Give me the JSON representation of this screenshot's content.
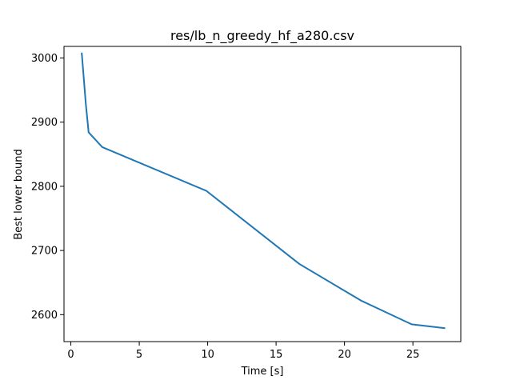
{
  "chart_data": {
    "type": "line",
    "title": "res/lb_n_greedy_hf_a280.csv",
    "xlabel": "Time [s]",
    "ylabel": "Best lower bound",
    "xlim": [
      -0.5,
      28.5
    ],
    "ylim": [
      2558,
      3018
    ],
    "xticks": [
      0,
      5,
      10,
      15,
      20,
      25
    ],
    "yticks": [
      2600,
      2700,
      2800,
      2900,
      3000
    ],
    "grid": false,
    "series": [
      {
        "color": "#1f77b4",
        "x": [
          0.8,
          1.1,
          1.3,
          2.3,
          9.9,
          16.7,
          21.2,
          24.9,
          27.3
        ],
        "y": [
          3007,
          2927,
          2884,
          2861,
          2793,
          2679,
          2622,
          2585,
          2579
        ]
      }
    ]
  }
}
